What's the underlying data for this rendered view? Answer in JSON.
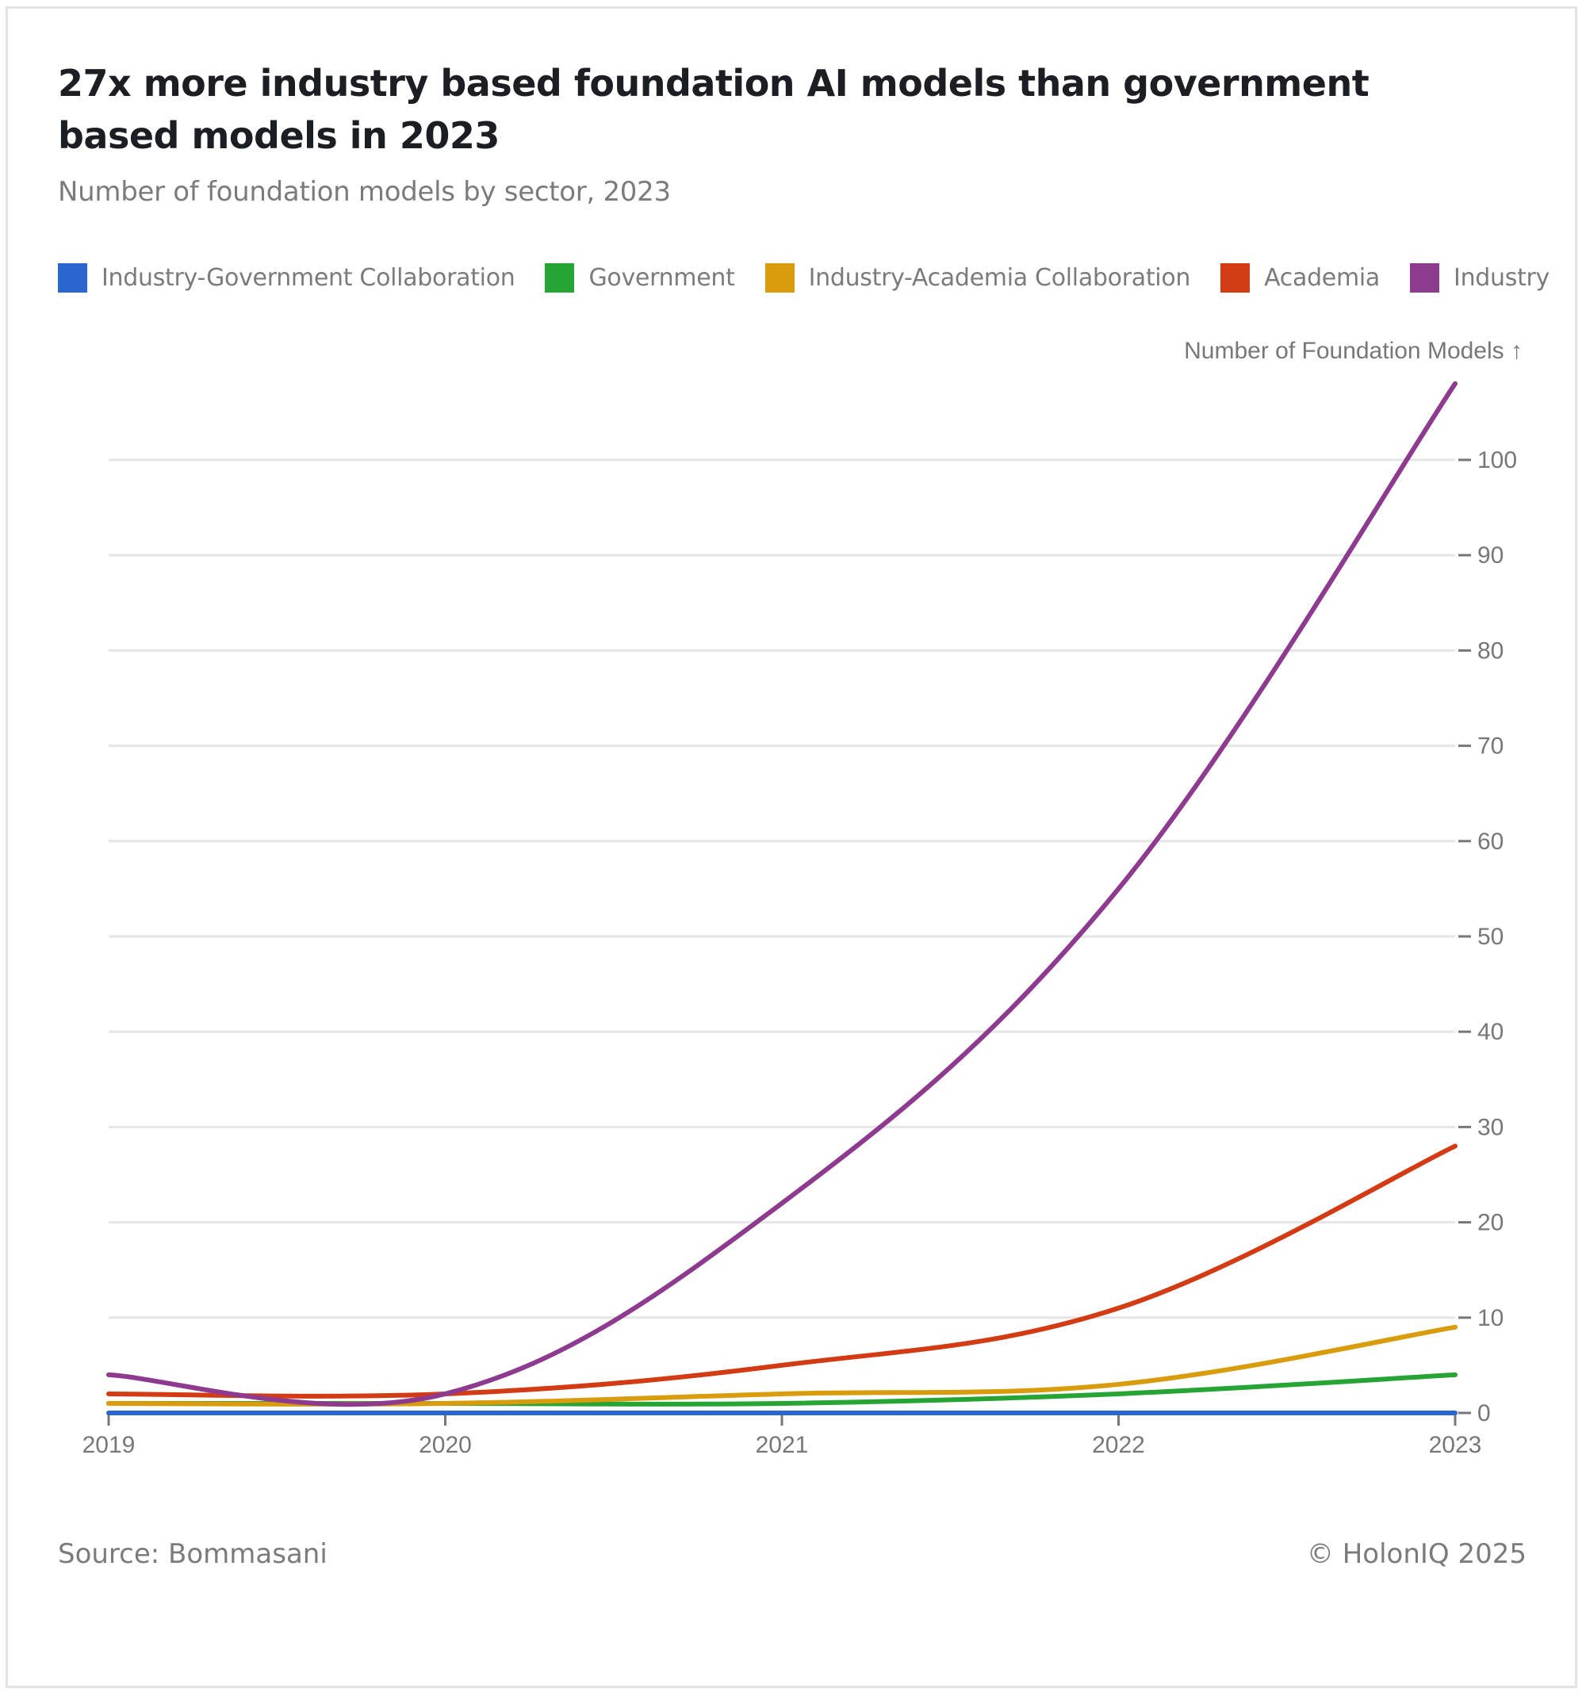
{
  "header": {
    "title": "27x more industry based foundation AI models than government based models in 2023",
    "subtitle": "Number of foundation models by sector, 2023"
  },
  "footer": {
    "source": "Source: Bommasani",
    "copyright": "© HolonIQ 2025"
  },
  "chart_data": {
    "type": "line",
    "title": "27x more industry based foundation AI models than government based models in 2023",
    "subtitle": "Number of foundation models by sector, 2023",
    "xlabel": "",
    "ylabel": "Number of Foundation Models ↑",
    "x": [
      2019,
      2020,
      2021,
      2022,
      2023
    ],
    "x_tick_labels": [
      "2019",
      "2020",
      "2021",
      "2022",
      "2023"
    ],
    "y_ticks": [
      0,
      10,
      20,
      30,
      40,
      50,
      60,
      70,
      80,
      90,
      100
    ],
    "ylim": [
      0,
      108
    ],
    "grid": true,
    "y_axis_side": "right",
    "legend_position": "top-left",
    "curve": "smooth",
    "series": [
      {
        "name": "Industry-Government Collaboration",
        "color": "#2a66d0",
        "values": [
          0,
          0,
          0,
          0,
          0
        ]
      },
      {
        "name": "Government",
        "color": "#27a534",
        "values": [
          1,
          1,
          1,
          2,
          4
        ]
      },
      {
        "name": "Industry-Academia Collaboration",
        "color": "#d99c0c",
        "values": [
          1,
          1,
          2,
          3,
          9
        ]
      },
      {
        "name": "Academia",
        "color": "#d23b14",
        "values": [
          2,
          2,
          5,
          11,
          28
        ]
      },
      {
        "name": "Industry",
        "color": "#8d3a8f",
        "values": [
          4,
          2,
          22,
          55,
          108
        ]
      }
    ]
  }
}
